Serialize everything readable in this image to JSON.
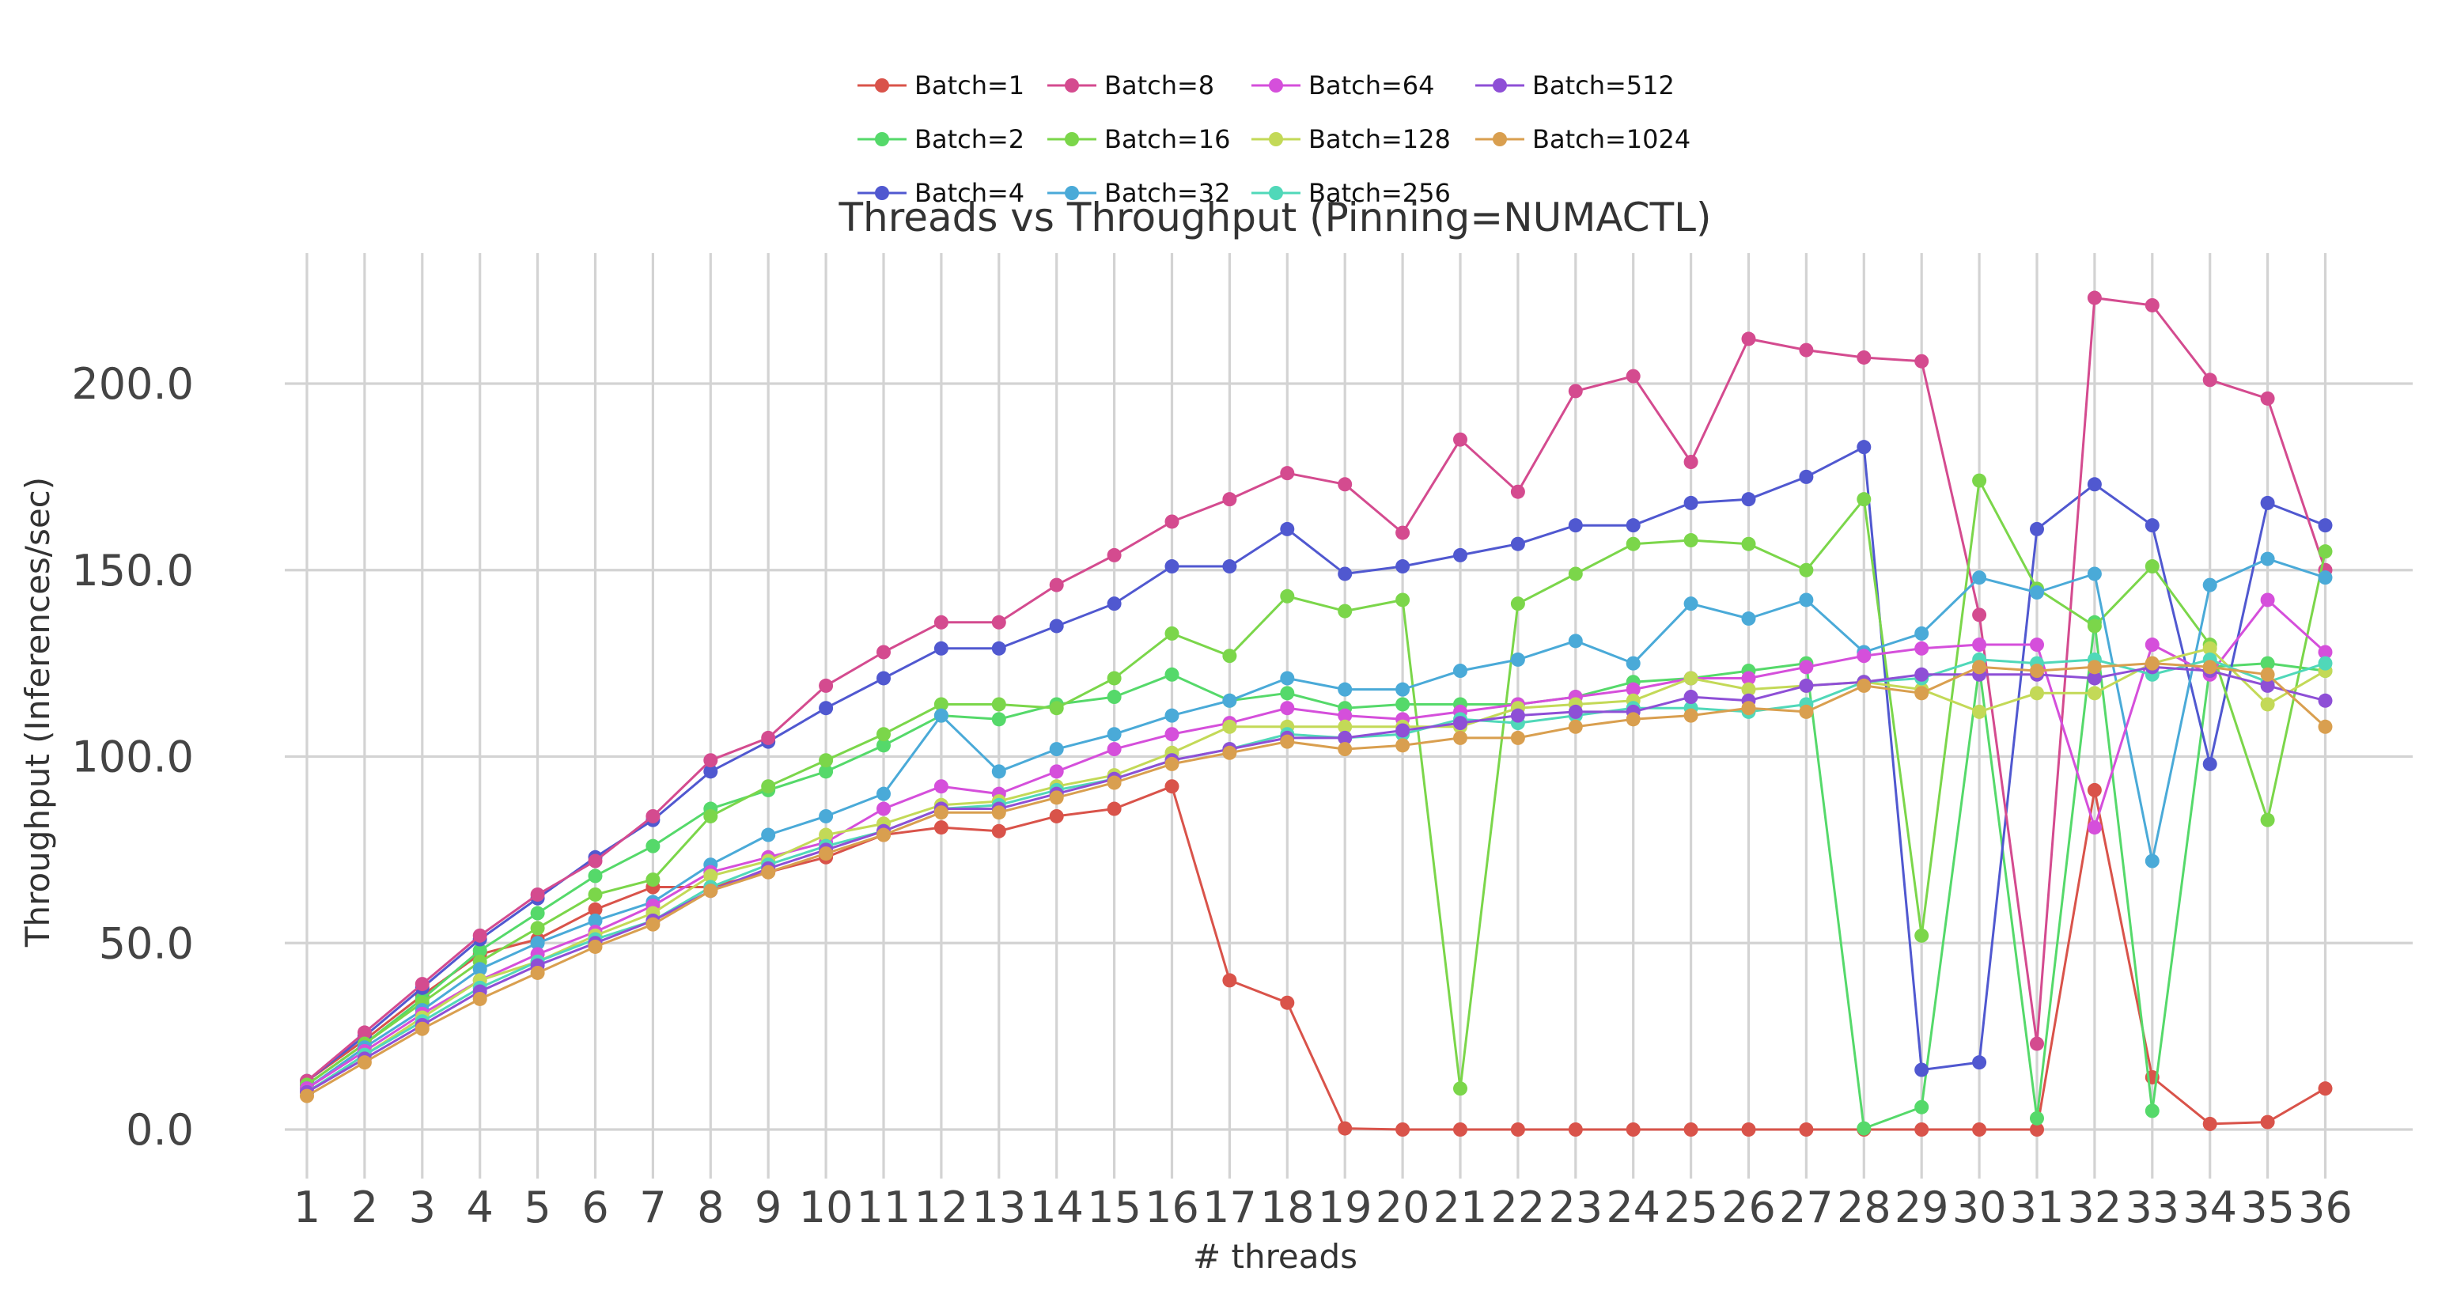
{
  "chart_data": {
    "type": "line",
    "title": "Threads vs Throughput (Pinning=NUMACTL)",
    "xlabel": "# threads",
    "ylabel": "Throughput (Inferences/sec)",
    "x": [
      1,
      2,
      3,
      4,
      5,
      6,
      7,
      8,
      9,
      10,
      11,
      12,
      13,
      14,
      15,
      16,
      17,
      18,
      19,
      20,
      21,
      22,
      23,
      24,
      25,
      26,
      27,
      28,
      29,
      30,
      31,
      32,
      33,
      34,
      35,
      36
    ],
    "ylim": [
      -12,
      235
    ],
    "yticks": [
      "0.0",
      "50.0",
      "100.0",
      "150.0",
      "200.0"
    ],
    "ytick_values": [
      0,
      50,
      100,
      150,
      200
    ],
    "grid": true,
    "legend_position": "top-center",
    "series": [
      {
        "name": "Batch=1",
        "color": "#d9534a",
        "values": [
          13,
          24,
          36,
          47,
          51,
          59,
          65,
          65,
          69,
          73,
          79,
          81,
          80,
          84,
          86,
          92,
          40,
          34,
          0.3,
          0,
          0,
          0,
          0,
          0,
          0,
          0,
          0,
          0,
          0,
          0,
          0,
          91,
          14,
          1.5,
          2,
          11
        ]
      },
      {
        "name": "Batch=2",
        "color": "#55d96a",
        "values": [
          12,
          23,
          35,
          48,
          58,
          68,
          76,
          86,
          91,
          96,
          103,
          111,
          110,
          114,
          116,
          122,
          115,
          117,
          113,
          114,
          114,
          114,
          116,
          120,
          121,
          123,
          125,
          0.3,
          6,
          124,
          3,
          136,
          5,
          124,
          125,
          123
        ]
      },
      {
        "name": "Batch=4",
        "color": "#5058d0",
        "values": [
          13,
          25,
          38,
          51,
          62,
          73,
          83,
          96,
          104,
          113,
          121,
          129,
          129,
          135,
          141,
          151,
          151,
          161,
          149,
          151,
          154,
          157,
          162,
          162,
          168,
          169,
          175,
          183,
          16,
          18,
          161,
          173,
          162,
          98,
          168,
          162
        ]
      },
      {
        "name": "Batch=8",
        "color": "#d44b8f",
        "values": [
          13,
          26,
          39,
          52,
          63,
          72,
          84,
          99,
          105,
          119,
          128,
          136,
          136,
          146,
          154,
          163,
          169,
          176,
          173,
          160,
          185,
          171,
          198,
          202,
          179,
          212,
          209,
          207,
          206,
          138,
          23,
          223,
          221,
          201,
          196,
          150
        ]
      },
      {
        "name": "Batch=16",
        "color": "#7bd64a",
        "values": [
          12,
          23,
          34,
          45,
          54,
          63,
          67,
          84,
          92,
          99,
          106,
          114,
          114,
          113,
          121,
          133,
          127,
          143,
          139,
          142,
          11,
          141,
          149,
          157,
          158,
          157,
          150,
          169,
          52,
          174,
          145,
          135,
          151,
          130,
          83,
          155
        ]
      },
      {
        "name": "Batch=32",
        "color": "#4aaad8",
        "values": [
          11,
          22,
          32,
          43,
          50,
          56,
          61,
          71,
          79,
          84,
          90,
          111,
          96,
          102,
          106,
          111,
          115,
          121,
          118,
          118,
          123,
          126,
          131,
          125,
          141,
          137,
          142,
          128,
          133,
          148,
          144,
          149,
          72,
          146,
          153,
          148
        ]
      },
      {
        "name": "Batch=64",
        "color": "#d54fdb",
        "values": [
          11,
          21,
          31,
          40,
          47,
          53,
          60,
          69,
          73,
          77,
          86,
          92,
          90,
          96,
          102,
          106,
          109,
          113,
          111,
          110,
          112,
          114,
          116,
          118,
          121,
          121,
          124,
          127,
          129,
          130,
          130,
          81,
          130,
          122,
          142,
          128
        ]
      },
      {
        "name": "Batch=128",
        "color": "#c3d957",
        "values": [
          10,
          20,
          30,
          40,
          45,
          52,
          58,
          68,
          72,
          79,
          82,
          87,
          88,
          92,
          95,
          101,
          108,
          108,
          108,
          108,
          108,
          113,
          114,
          115,
          121,
          118,
          119,
          120,
          118,
          112,
          117,
          117,
          125,
          129,
          114,
          123
        ]
      },
      {
        "name": "Batch=256",
        "color": "#50d8b9",
        "values": [
          10,
          20,
          29,
          38,
          45,
          51,
          56,
          65,
          71,
          76,
          80,
          86,
          87,
          91,
          94,
          99,
          102,
          106,
          105,
          106,
          110,
          109,
          111,
          113,
          113,
          112,
          114,
          120,
          121,
          126,
          125,
          126,
          122,
          126,
          120,
          125
        ]
      },
      {
        "name": "Batch=512",
        "color": "#8e4fd6",
        "values": [
          10,
          19,
          28,
          37,
          44,
          50,
          56,
          64,
          70,
          75,
          80,
          86,
          86,
          90,
          94,
          99,
          102,
          105,
          105,
          107,
          109,
          111,
          112,
          112,
          116,
          115,
          119,
          120,
          122,
          122,
          122,
          121,
          124,
          123,
          119,
          115
        ]
      },
      {
        "name": "Batch=1024",
        "color": "#d99f4f",
        "values": [
          9,
          18,
          27,
          35,
          42,
          49,
          55,
          64,
          69,
          74,
          79,
          85,
          85,
          89,
          93,
          98,
          101,
          104,
          102,
          103,
          105,
          105,
          108,
          110,
          111,
          113,
          112,
          119,
          117,
          124,
          123,
          124,
          125,
          124,
          122,
          108
        ]
      }
    ]
  }
}
